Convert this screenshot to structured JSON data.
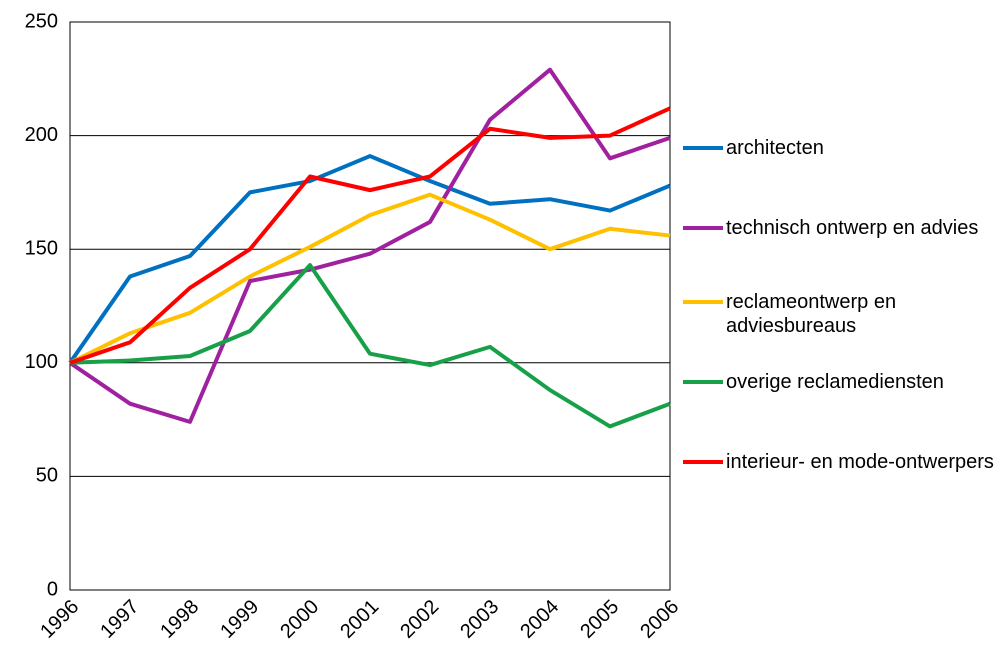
{
  "chart_data": {
    "type": "line",
    "categories": [
      "1996",
      "1997",
      "1998",
      "1999",
      "2000",
      "2001",
      "2002",
      "2003",
      "2004",
      "2005",
      "2006"
    ],
    "series": [
      {
        "name": "architecten",
        "color": "#0070c0",
        "values": [
          100,
          138,
          147,
          175,
          180,
          191,
          180,
          170,
          172,
          167,
          178
        ]
      },
      {
        "name": "technisch ontwerp en advies",
        "color": "#a020a0",
        "values": [
          100,
          82,
          74,
          136,
          141,
          148,
          162,
          207,
          229,
          190,
          199
        ]
      },
      {
        "name": "reclameontwerp en adviesbureaus",
        "color": "#ffc000",
        "values": [
          100,
          113,
          122,
          138,
          151,
          165,
          174,
          163,
          150,
          159,
          156
        ]
      },
      {
        "name": "overige reclamediensten",
        "color": "#18a048",
        "values": [
          100,
          101,
          103,
          114,
          143,
          104,
          99,
          107,
          88,
          72,
          82
        ]
      },
      {
        "name": "interieur- en mode-ontwerpers",
        "color": "#ff0000",
        "values": [
          100,
          109,
          133,
          150,
          182,
          176,
          182,
          203,
          199,
          200,
          212
        ]
      }
    ],
    "ylim": [
      0,
      250
    ],
    "yticks": [
      0,
      50,
      100,
      150,
      200,
      250
    ],
    "grid": true,
    "legend": "right"
  }
}
